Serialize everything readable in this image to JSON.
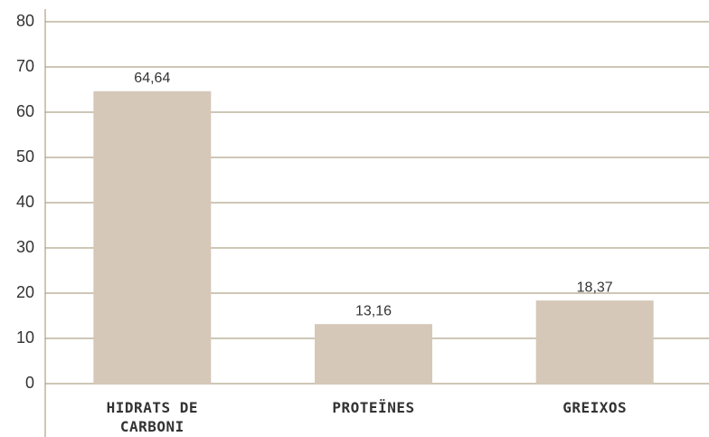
{
  "chart_data": {
    "type": "bar",
    "categories": [
      "HIDRATS DE CARBONI",
      "PROTEÏNES",
      "GREIXOS"
    ],
    "values": [
      64.64,
      13.16,
      18.37
    ],
    "value_labels": [
      "64,64",
      "13,16",
      "18,37"
    ],
    "color": "#d5c8b8",
    "ylim": [
      0,
      80
    ],
    "yticks": [
      0,
      10,
      20,
      30,
      40,
      50,
      60,
      70,
      80
    ],
    "grid": true
  }
}
